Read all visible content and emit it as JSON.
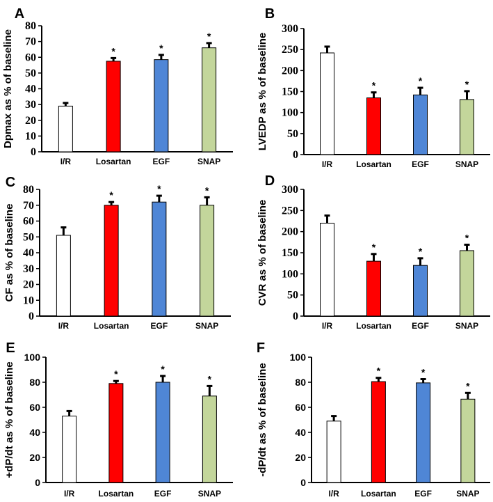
{
  "figure": {
    "colors": {
      "white": "#ffffff",
      "red": "#ff0000",
      "blue": "#4f86d6",
      "green": "#c3d69b"
    },
    "categories": [
      "I/R",
      "Losartan",
      "EGF",
      "SNAP"
    ]
  },
  "chart_data": [
    {
      "panel": "A",
      "type": "bar",
      "ylabel": "Dpmax as % of baseline",
      "xlabel": "",
      "ylim": [
        0,
        80
      ],
      "yticks": [
        "0",
        "10",
        "20",
        "30",
        "40",
        "50",
        "60",
        "70",
        "80"
      ],
      "categories": [
        "I/R",
        "Losartan",
        "EGF",
        "SNAP"
      ],
      "values": [
        29,
        57.5,
        58.5,
        66
      ],
      "errors": [
        2,
        2,
        3,
        3
      ],
      "significance": [
        "",
        "*",
        "*",
        "*"
      ],
      "tick_font": "serif"
    },
    {
      "panel": "B",
      "type": "bar",
      "ylabel": "LVEDP as % of baseline",
      "xlabel": "",
      "ylim": [
        0,
        300
      ],
      "yticks": [
        "0",
        "50",
        "100",
        "150",
        "200",
        "250",
        "300"
      ],
      "categories": [
        "I/R",
        "Losartan",
        "EGF",
        "SNAP"
      ],
      "values": [
        242,
        135,
        142,
        131
      ],
      "errors": [
        15,
        13,
        17,
        20
      ],
      "significance": [
        "",
        "*",
        "*",
        "*"
      ],
      "tick_font": "serif"
    },
    {
      "panel": "C",
      "type": "bar",
      "ylabel": "CF as % of baseline",
      "xlabel": "",
      "ylim": [
        0,
        80
      ],
      "yticks": [
        "0",
        "10",
        "20",
        "30",
        "40",
        "50",
        "60",
        "70",
        "80"
      ],
      "categories": [
        "I/R",
        "Losartan",
        "EGF",
        "SNAP"
      ],
      "values": [
        51,
        70,
        72,
        70
      ],
      "errors": [
        5,
        2,
        4,
        5
      ],
      "significance": [
        "",
        "*",
        "*",
        "*"
      ],
      "tick_font": "serif"
    },
    {
      "panel": "D",
      "type": "bar",
      "ylabel": "CVR as % of baseline",
      "xlabel": "",
      "ylim": [
        0,
        300
      ],
      "yticks": [
        "0",
        "50",
        "100",
        "150",
        "200",
        "250",
        "300"
      ],
      "categories": [
        "I/R",
        "Losartan",
        "EGF",
        "SNAP"
      ],
      "values": [
        220,
        130,
        120,
        155
      ],
      "errors": [
        18,
        17,
        17,
        14
      ],
      "significance": [
        "",
        "*",
        "*",
        "*"
      ],
      "tick_font": "serif"
    },
    {
      "panel": "E",
      "type": "bar",
      "ylabel": "+dP/dt  as % of baseline",
      "xlabel": "",
      "ylim": [
        0,
        100
      ],
      "yticks": [
        "0",
        "20",
        "40",
        "60",
        "80",
        "100"
      ],
      "categories": [
        "I/R",
        "Losartan",
        "EGF",
        "SNAP"
      ],
      "values": [
        53,
        79,
        80,
        69
      ],
      "errors": [
        4,
        2,
        5,
        8
      ],
      "significance": [
        "",
        "*",
        "*",
        "*"
      ],
      "tick_font": "sans"
    },
    {
      "panel": "F",
      "type": "bar",
      "ylabel": "-dP/dt as % of baseline",
      "xlabel": "",
      "ylim": [
        0,
        100
      ],
      "yticks": [
        "0",
        "20",
        "40",
        "60",
        "80",
        "100"
      ],
      "categories": [
        "I/R",
        "Losartan",
        "EGF",
        "SNAP"
      ],
      "values": [
        49,
        80.5,
        79.5,
        66.5
      ],
      "errors": [
        4,
        3,
        3,
        5
      ],
      "significance": [
        "",
        "*",
        "*",
        "*"
      ],
      "tick_font": "sans"
    }
  ]
}
